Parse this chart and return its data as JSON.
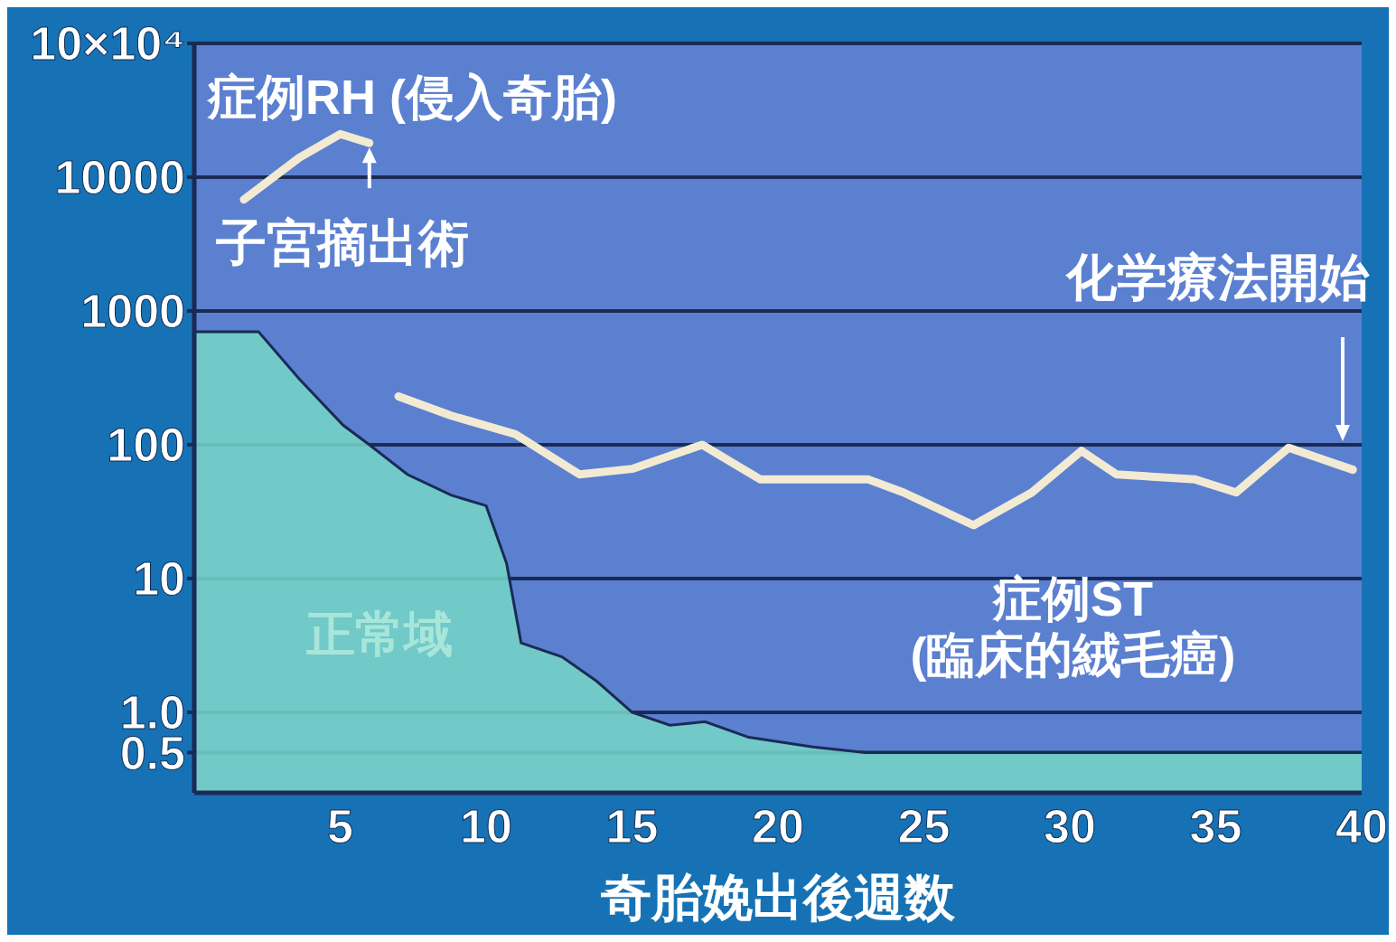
{
  "chart_data": {
    "type": "line",
    "xlabel": "奇胎娩出後週数",
    "xlim": [
      0,
      40
    ],
    "xticks": [
      5,
      10,
      15,
      20,
      25,
      30,
      35,
      40
    ],
    "log": true,
    "ylim": [
      0.25,
      100000
    ],
    "yticks": [
      {
        "value": 0.5,
        "label": "0.5"
      },
      {
        "value": 1,
        "label": "1.0"
      },
      10,
      100,
      1000,
      10000,
      {
        "value": 100000,
        "label": "10×10⁴"
      }
    ],
    "grid": "y",
    "marker": "none",
    "line_style": "solid",
    "series": [
      {
        "name": "正常域",
        "type": "area",
        "color": "#74d3c6",
        "x": [
          0,
          2.2,
          3.6,
          5.1,
          6,
          7.3,
          8.8,
          10,
          10.7,
          11.2,
          12.6,
          13.8,
          15,
          16.3,
          17.5,
          19,
          21.2,
          23,
          40
        ],
        "values": [
          700,
          700,
          310,
          140,
          100,
          60,
          42,
          35,
          13,
          3.3,
          2.6,
          1.7,
          1,
          0.8,
          0.85,
          0.65,
          0.55,
          0.5,
          0.5
        ]
      },
      {
        "name": "症例RH (侵入奇胎)",
        "color": "#f2ead2",
        "x": [
          1.7,
          3.6,
          5,
          6
        ],
        "values": [
          6800,
          14000,
          21000,
          18000
        ]
      },
      {
        "name": "症例ST (臨床的絨毛癌)",
        "color": "#f2ead2",
        "x": [
          7,
          8.8,
          11,
          13.2,
          15,
          17.4,
          19.4,
          23.1,
          24.3,
          26.7,
          28.7,
          30.4,
          31.6,
          34.3,
          35.7,
          37.5,
          39.7
        ],
        "values": [
          230,
          165,
          120,
          60,
          66,
          100,
          55,
          55,
          44,
          25,
          44,
          90,
          60,
          55,
          44,
          95,
          65
        ]
      }
    ],
    "annotations": [
      {
        "text": "子宮摘出術",
        "x": 6,
        "y": 18000
      },
      "化学療法開始"
    ]
  }
}
